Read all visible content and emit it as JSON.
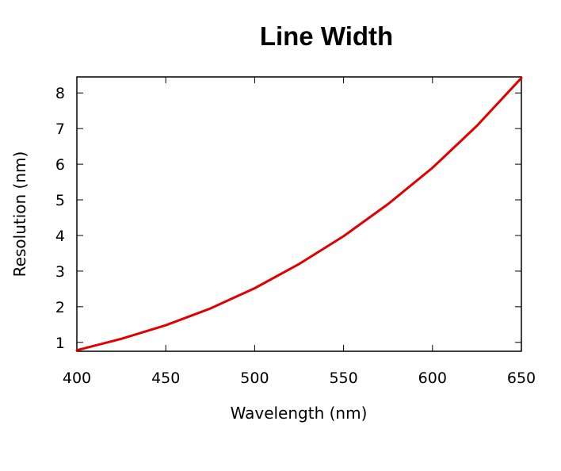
{
  "chart_data": {
    "type": "line",
    "title": "Line Width",
    "xlabel": "Wavelength (nm)",
    "ylabel": "Resolution (nm)",
    "xlim": [
      400,
      650
    ],
    "ylim": [
      0.75,
      8.45
    ],
    "xticks": [
      400,
      450,
      500,
      550,
      600,
      650
    ],
    "yticks": [
      1,
      2,
      3,
      4,
      5,
      6,
      7,
      8
    ],
    "grid": false,
    "legend": "none",
    "series": [
      {
        "color": "#e00000",
        "x": [
          400,
          425,
          450,
          475,
          500,
          525,
          550,
          575,
          600,
          625,
          650
        ],
        "y": [
          0.78,
          1.1,
          1.48,
          1.95,
          2.52,
          3.2,
          3.98,
          4.88,
          5.9,
          7.08,
          8.42
        ]
      }
    ]
  }
}
